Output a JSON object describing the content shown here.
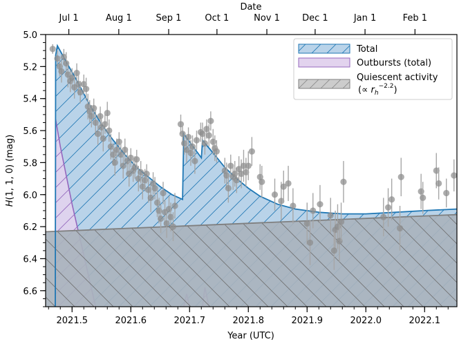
{
  "chart_data": {
    "type": "scatter",
    "title": "",
    "top_axis_label": "Date",
    "top_ticks": [
      {
        "label": "Jul 1",
        "x": 2021.4945
      },
      {
        "label": "Aug 1",
        "x": 2021.5795
      },
      {
        "label": "Sep 1",
        "x": 2021.6644
      },
      {
        "label": "Oct 1",
        "x": 2021.7466
      },
      {
        "label": "Nov 1",
        "x": 2021.8315
      },
      {
        "label": "Dec 1",
        "x": 2021.9137
      },
      {
        "label": "Jan 1",
        "x": 2021.9986
      },
      {
        "label": "Feb 1",
        "x": 2022.0836
      }
    ],
    "xlabel": "Year (UTC)",
    "ylabel": "H(1,1,0) (mag)",
    "ylabel_prefix": "H",
    "ylabel_suffix": "(1, 1, 0) (mag)",
    "xlim": [
      2021.455,
      2022.155
    ],
    "ylim": [
      5.0,
      6.7
    ],
    "y_inverted": true,
    "x_ticks": [
      {
        "label": "2021.5",
        "v": 2021.5
      },
      {
        "label": "2021.6",
        "v": 2021.6
      },
      {
        "label": "2021.7",
        "v": 2021.7
      },
      {
        "label": "2021.8",
        "v": 2021.8
      },
      {
        "label": "2021.9",
        "v": 2021.9
      },
      {
        "label": "2022.0",
        "v": 2022.0
      },
      {
        "label": "2022.1",
        "v": 2022.1
      }
    ],
    "y_ticks": [
      {
        "label": "5.0",
        "v": 5.0
      },
      {
        "label": "5.2",
        "v": 5.2
      },
      {
        "label": "5.4",
        "v": 5.4
      },
      {
        "label": "5.6",
        "v": 5.6
      },
      {
        "label": "5.8",
        "v": 5.8
      },
      {
        "label": "6.0",
        "v": 6.0
      },
      {
        "label": "6.2",
        "v": 6.2
      },
      {
        "label": "6.4",
        "v": 6.4
      },
      {
        "label": "6.6",
        "v": 6.6
      }
    ],
    "legend_position": "top-right",
    "legend": [
      {
        "label": "Total",
        "color": "#1f77b4",
        "fill": "#b9d3e9"
      },
      {
        "label": "Outbursts (total)",
        "color": "#9467bd",
        "fill": "#e2d3ee"
      },
      {
        "label": "Quiescent activity",
        "sublabel": "(∝ r_h^−2.2)",
        "sub_prefix": "(∝ ",
        "sub_var": "r",
        "sub_index": "h",
        "sub_power": "−2.2",
        "sub_suffix": ")",
        "color": "#7f7f7f",
        "fill": "#cccccc"
      }
    ],
    "series": [
      {
        "name": "Total",
        "color": "#1f77b4",
        "points": [
          [
            2021.4715,
            6.7
          ],
          [
            2021.472,
            5.13
          ],
          [
            2021.475,
            5.07
          ],
          [
            2021.49,
            5.17
          ],
          [
            2021.51,
            5.3
          ],
          [
            2021.53,
            5.44
          ],
          [
            2021.55,
            5.56
          ],
          [
            2021.57,
            5.66
          ],
          [
            2021.59,
            5.75
          ],
          [
            2021.61,
            5.83
          ],
          [
            2021.63,
            5.89
          ],
          [
            2021.65,
            5.95
          ],
          [
            2021.67,
            6.0
          ],
          [
            2021.688,
            6.03
          ],
          [
            2021.69,
            5.62
          ],
          [
            2021.71,
            5.72
          ],
          [
            2021.72,
            5.77
          ],
          [
            2021.722,
            5.66
          ],
          [
            2021.74,
            5.74
          ],
          [
            2021.76,
            5.83
          ],
          [
            2021.78,
            5.9
          ],
          [
            2021.8,
            5.96
          ],
          [
            2021.82,
            6.01
          ],
          [
            2021.85,
            6.06
          ],
          [
            2021.88,
            6.09
          ],
          [
            2021.92,
            6.11
          ],
          [
            2021.96,
            6.12
          ],
          [
            2022.0,
            6.12
          ],
          [
            2022.05,
            6.11
          ],
          [
            2022.1,
            6.1
          ],
          [
            2022.155,
            6.09
          ]
        ]
      },
      {
        "name": "Outbursts (total)",
        "color": "#9467bd",
        "segments": [
          [
            [
              2021.4715,
              6.7
            ],
            [
              2021.472,
              5.53
            ],
            [
              2021.48,
              5.7
            ],
            [
              2021.5,
              6.06
            ],
            [
              2021.52,
              6.38
            ],
            [
              2021.54,
              6.7
            ]
          ],
          [
            [
              2021.69,
              6.7
            ],
            [
              2021.695,
              6.62
            ],
            [
              2021.7,
              6.7
            ]
          ],
          [
            [
              2021.722,
              6.7
            ],
            [
              2021.726,
              6.58
            ],
            [
              2021.733,
              6.7
            ]
          ]
        ]
      },
      {
        "name": "Quiescent activity",
        "color": "#7f7f7f",
        "points": [
          [
            2021.455,
            6.232
          ],
          [
            2022.155,
            6.125
          ]
        ]
      }
    ],
    "observations": [
      {
        "x": 2021.467,
        "y": 5.09,
        "err": 0.03
      },
      {
        "x": 2021.475,
        "y": 5.15,
        "err": 0.05
      },
      {
        "x": 2021.479,
        "y": 5.2,
        "err": 0.06
      },
      {
        "x": 2021.482,
        "y": 5.23,
        "err": 0.07
      },
      {
        "x": 2021.486,
        "y": 5.14,
        "err": 0.05
      },
      {
        "x": 2021.49,
        "y": 5.18,
        "err": 0.07
      },
      {
        "x": 2021.493,
        "y": 5.25,
        "err": 0.08
      },
      {
        "x": 2021.497,
        "y": 5.29,
        "err": 0.07
      },
      {
        "x": 2021.5,
        "y": 5.27,
        "err": 0.06
      },
      {
        "x": 2021.504,
        "y": 5.33,
        "err": 0.07
      },
      {
        "x": 2021.508,
        "y": 5.24,
        "err": 0.06
      },
      {
        "x": 2021.511,
        "y": 5.31,
        "err": 0.07
      },
      {
        "x": 2021.514,
        "y": 5.36,
        "err": 0.07
      },
      {
        "x": 2021.52,
        "y": 5.31,
        "err": 0.06
      },
      {
        "x": 2021.524,
        "y": 5.34,
        "err": 0.07
      },
      {
        "x": 2021.527,
        "y": 5.45,
        "err": 0.08
      },
      {
        "x": 2021.53,
        "y": 5.48,
        "err": 0.07
      },
      {
        "x": 2021.533,
        "y": 5.51,
        "err": 0.07
      },
      {
        "x": 2021.537,
        "y": 5.46,
        "err": 0.06
      },
      {
        "x": 2021.54,
        "y": 5.55,
        "err": 0.08
      },
      {
        "x": 2021.544,
        "y": 5.62,
        "err": 0.07
      },
      {
        "x": 2021.548,
        "y": 5.51,
        "err": 0.06
      },
      {
        "x": 2021.55,
        "y": 5.58,
        "err": 0.07
      },
      {
        "x": 2021.553,
        "y": 5.65,
        "err": 0.08
      },
      {
        "x": 2021.556,
        "y": 5.56,
        "err": 0.06
      },
      {
        "x": 2021.56,
        "y": 5.49,
        "err": 0.07
      },
      {
        "x": 2021.563,
        "y": 5.6,
        "err": 0.07
      },
      {
        "x": 2021.566,
        "y": 5.7,
        "err": 0.08
      },
      {
        "x": 2021.57,
        "y": 5.75,
        "err": 0.07
      },
      {
        "x": 2021.573,
        "y": 5.8,
        "err": 0.08
      },
      {
        "x": 2021.576,
        "y": 5.72,
        "err": 0.07
      },
      {
        "x": 2021.58,
        "y": 5.67,
        "err": 0.06
      },
      {
        "x": 2021.583,
        "y": 5.75,
        "err": 0.07
      },
      {
        "x": 2021.587,
        "y": 5.82,
        "err": 0.08
      },
      {
        "x": 2021.59,
        "y": 5.72,
        "err": 0.07
      },
      {
        "x": 2021.594,
        "y": 5.79,
        "err": 0.08
      },
      {
        "x": 2021.597,
        "y": 5.87,
        "err": 0.08
      },
      {
        "x": 2021.6,
        "y": 5.77,
        "err": 0.06
      },
      {
        "x": 2021.604,
        "y": 5.85,
        "err": 0.07
      },
      {
        "x": 2021.607,
        "y": 5.83,
        "err": 0.07
      },
      {
        "x": 2021.61,
        "y": 5.78,
        "err": 0.06
      },
      {
        "x": 2021.613,
        "y": 5.9,
        "err": 0.08
      },
      {
        "x": 2021.617,
        "y": 5.86,
        "err": 0.07
      },
      {
        "x": 2021.62,
        "y": 5.95,
        "err": 0.08
      },
      {
        "x": 2021.624,
        "y": 5.91,
        "err": 0.07
      },
      {
        "x": 2021.627,
        "y": 5.87,
        "err": 0.06
      },
      {
        "x": 2021.63,
        "y": 5.97,
        "err": 0.08
      },
      {
        "x": 2021.634,
        "y": 6.02,
        "err": 0.09
      },
      {
        "x": 2021.638,
        "y": 5.93,
        "err": 0.07
      },
      {
        "x": 2021.641,
        "y": 5.96,
        "err": 0.07
      },
      {
        "x": 2021.645,
        "y": 6.05,
        "err": 0.09
      },
      {
        "x": 2021.648,
        "y": 6.1,
        "err": 0.08
      },
      {
        "x": 2021.651,
        "y": 6.15,
        "err": 0.09
      },
      {
        "x": 2021.655,
        "y": 5.99,
        "err": 0.07
      },
      {
        "x": 2021.658,
        "y": 6.11,
        "err": 0.08
      },
      {
        "x": 2021.661,
        "y": 6.18,
        "err": 0.09
      },
      {
        "x": 2021.665,
        "y": 6.09,
        "err": 0.08
      },
      {
        "x": 2021.668,
        "y": 6.14,
        "err": 0.09
      },
      {
        "x": 2021.672,
        "y": 6.2,
        "err": 0.09
      },
      {
        "x": 2021.675,
        "y": 6.07,
        "err": 0.08
      },
      {
        "x": 2021.685,
        "y": 5.56,
        "err": 0.06
      },
      {
        "x": 2021.688,
        "y": 5.62,
        "err": 0.07
      },
      {
        "x": 2021.691,
        "y": 5.68,
        "err": 0.07
      },
      {
        "x": 2021.695,
        "y": 5.72,
        "err": 0.08
      },
      {
        "x": 2021.698,
        "y": 5.64,
        "err": 0.06
      },
      {
        "x": 2021.702,
        "y": 5.74,
        "err": 0.08
      },
      {
        "x": 2021.705,
        "y": 5.7,
        "err": 0.07
      },
      {
        "x": 2021.709,
        "y": 5.79,
        "err": 0.08
      },
      {
        "x": 2021.712,
        "y": 5.66,
        "err": 0.06
      },
      {
        "x": 2021.719,
        "y": 5.61,
        "err": 0.06
      },
      {
        "x": 2021.722,
        "y": 5.62,
        "err": 0.07
      },
      {
        "x": 2021.726,
        "y": 5.68,
        "err": 0.07
      },
      {
        "x": 2021.729,
        "y": 5.59,
        "err": 0.06
      },
      {
        "x": 2021.733,
        "y": 5.63,
        "err": 0.07
      },
      {
        "x": 2021.736,
        "y": 5.54,
        "err": 0.06
      },
      {
        "x": 2021.74,
        "y": 5.67,
        "err": 0.08
      },
      {
        "x": 2021.743,
        "y": 5.71,
        "err": 0.08
      },
      {
        "x": 2021.746,
        "y": 5.73,
        "err": 0.07
      },
      {
        "x": 2021.76,
        "y": 5.85,
        "err": 0.08
      },
      {
        "x": 2021.763,
        "y": 5.88,
        "err": 0.08
      },
      {
        "x": 2021.766,
        "y": 5.96,
        "err": 0.09
      },
      {
        "x": 2021.77,
        "y": 5.82,
        "err": 0.07
      },
      {
        "x": 2021.774,
        "y": 5.89,
        "err": 0.08
      },
      {
        "x": 2021.777,
        "y": 5.87,
        "err": 0.08
      },
      {
        "x": 2021.78,
        "y": 5.91,
        "err": 0.08
      },
      {
        "x": 2021.784,
        "y": 5.84,
        "err": 0.08
      },
      {
        "x": 2021.788,
        "y": 5.87,
        "err": 0.09
      },
      {
        "x": 2021.792,
        "y": 5.82,
        "err": 0.1
      },
      {
        "x": 2021.796,
        "y": 5.86,
        "err": 0.09
      },
      {
        "x": 2021.8,
        "y": 5.82,
        "err": 0.09
      },
      {
        "x": 2021.806,
        "y": 5.73,
        "err": 0.09
      },
      {
        "x": 2021.82,
        "y": 5.89,
        "err": 0.08
      },
      {
        "x": 2021.823,
        "y": 5.92,
        "err": 0.1
      },
      {
        "x": 2021.845,
        "y": 6.0,
        "err": 0.1
      },
      {
        "x": 2021.856,
        "y": 6.04,
        "err": 0.12
      },
      {
        "x": 2021.86,
        "y": 5.95,
        "err": 0.1
      },
      {
        "x": 2021.868,
        "y": 5.93,
        "err": 0.11
      },
      {
        "x": 2021.876,
        "y": 6.07,
        "err": 0.11
      },
      {
        "x": 2021.9,
        "y": 6.18,
        "err": 0.13
      },
      {
        "x": 2021.905,
        "y": 6.3,
        "err": 0.14
      },
      {
        "x": 2021.91,
        "y": 6.1,
        "err": 0.11
      },
      {
        "x": 2021.922,
        "y": 6.06,
        "err": 0.12
      },
      {
        "x": 2021.948,
        "y": 6.22,
        "err": 0.12
      },
      {
        "x": 2021.952,
        "y": 6.2,
        "err": 0.14
      },
      {
        "x": 2021.955,
        "y": 6.29,
        "err": 0.13
      },
      {
        "x": 2021.958,
        "y": 6.17,
        "err": 0.12
      },
      {
        "x": 2021.962,
        "y": 5.92,
        "err": 0.13
      },
      {
        "x": 2022.03,
        "y": 6.14,
        "err": 0.12
      },
      {
        "x": 2022.038,
        "y": 6.08,
        "err": 0.12
      },
      {
        "x": 2022.044,
        "y": 6.03,
        "err": 0.13
      },
      {
        "x": 2022.058,
        "y": 6.21,
        "err": 0.14
      },
      {
        "x": 2022.06,
        "y": 5.89,
        "err": 0.12
      },
      {
        "x": 2022.094,
        "y": 5.98,
        "err": 0.11
      },
      {
        "x": 2022.097,
        "y": 6.02,
        "err": 0.1
      },
      {
        "x": 2022.12,
        "y": 5.85,
        "err": 0.11
      },
      {
        "x": 2022.124,
        "y": 5.93,
        "err": 0.1
      },
      {
        "x": 2022.137,
        "y": 5.99,
        "err": 0.09
      },
      {
        "x": 2022.15,
        "y": 5.88,
        "err": 0.1
      },
      {
        "x": 2021.946,
        "y": 6.35,
        "err": 0.12
      },
      {
        "x": 2021.94,
        "y": 6.13,
        "err": 0.11
      }
    ]
  },
  "colors": {
    "total": "#1f77b4",
    "total_fill": "#b9d3e9",
    "outburst": "#9467bd",
    "outburst_fill": "#e2d3ee",
    "quiescent": "#7f7f7f",
    "quiescent_fill": "#a9b3bd",
    "points": "#8c8c8c"
  }
}
